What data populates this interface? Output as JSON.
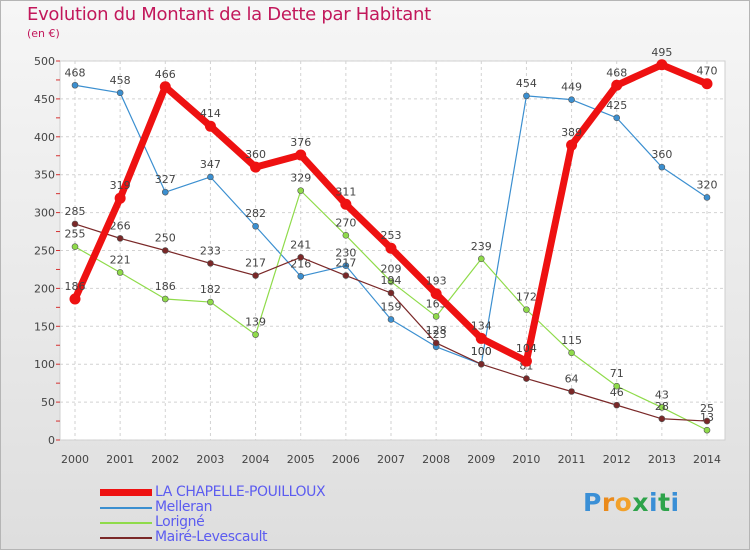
{
  "header": {
    "title": "Evolution du Montant de la Dette par Habitant",
    "subtitle": "(en €)"
  },
  "logo": {
    "text": "Proxiti",
    "letters": [
      "P",
      "r",
      "o",
      "x",
      "i",
      "t",
      "i"
    ],
    "colors": [
      "#3a8fd6",
      "#ea8a1b",
      "#f2a12a",
      "#2ea34a",
      "#3a8fd6",
      "#2ea34a",
      "#3a8fd6"
    ]
  },
  "chart_data": {
    "type": "line",
    "title": "Evolution du Montant de la Dette par Habitant",
    "subtitle": "(en €)",
    "xlabel": "",
    "ylabel": "",
    "x": [
      "2000",
      "2001",
      "2002",
      "2003",
      "2004",
      "2005",
      "2006",
      "2007",
      "2008",
      "2009",
      "2010",
      "2011",
      "2012",
      "2013",
      "2014"
    ],
    "ylim": [
      0,
      500
    ],
    "yticks": [
      0,
      50,
      100,
      150,
      200,
      250,
      300,
      350,
      400,
      450,
      500
    ],
    "grid": true,
    "legend": "bottom-left",
    "series": [
      {
        "name": "LA CHAPELLE-POUILLOUX",
        "color": "#ee1111",
        "emphasis": true,
        "values": [
          186,
          319,
          466,
          414,
          360,
          376,
          311,
          253,
          193,
          134,
          104,
          389,
          468,
          495,
          470
        ],
        "labels": [
          "186",
          "319",
          "466",
          "414",
          "360",
          "376",
          "311",
          "253",
          "193",
          "134",
          "104",
          "389",
          "468",
          "495",
          "470"
        ]
      },
      {
        "name": "Melleran",
        "color": "#3b8fd0",
        "emphasis": false,
        "values": [
          468,
          458,
          327,
          347,
          282,
          216,
          230,
          159,
          123,
          100,
          454,
          449,
          425,
          360,
          320
        ],
        "labels": [
          "468",
          "458",
          "327",
          "347",
          "282",
          "216",
          "230",
          "159",
          "123",
          "100",
          "454",
          "449",
          "425",
          "360",
          "320"
        ]
      },
      {
        "name": "Lorigné",
        "color": "#8fdb4a",
        "emphasis": false,
        "values": [
          255,
          221,
          186,
          182,
          139,
          329,
          270,
          209,
          163,
          239,
          172,
          115,
          71,
          43,
          13
        ],
        "labels": [
          "255",
          "221",
          "186",
          "182",
          "139",
          "329",
          "270",
          "209",
          "163",
          "239",
          "172",
          "115",
          "71",
          "43",
          "13"
        ]
      },
      {
        "name": "Mairé-Levescault",
        "color": "#7a2828",
        "emphasis": false,
        "values": [
          285,
          266,
          250,
          233,
          217,
          241,
          217,
          194,
          128,
          100,
          81,
          64,
          46,
          28,
          25
        ],
        "labels": [
          "285",
          "266",
          "250",
          "233",
          "217",
          "241",
          "217",
          "194",
          "128",
          "100",
          "81",
          "64",
          "46",
          "28",
          "25"
        ]
      }
    ]
  }
}
